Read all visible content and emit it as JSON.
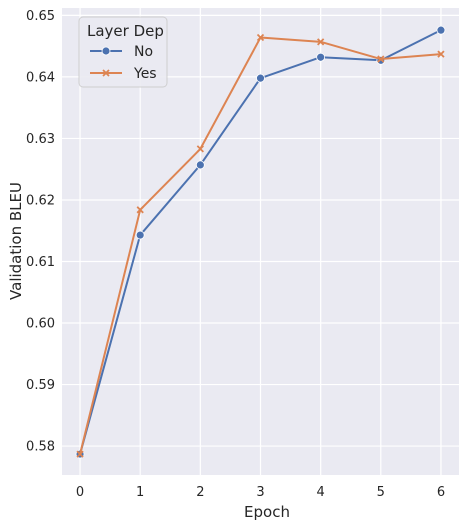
{
  "chart_data": {
    "type": "line",
    "xlabel": "Epoch",
    "ylabel": "Validation BLEU",
    "x": [
      0,
      1,
      2,
      3,
      4,
      5,
      6
    ],
    "xlim": [
      -0.3,
      6.3
    ],
    "ylim": [
      0.5753,
      0.6512
    ],
    "xticks": [
      0,
      1,
      2,
      3,
      4,
      5,
      6
    ],
    "yticks": [
      0.58,
      0.59,
      0.6,
      0.61,
      0.62,
      0.63,
      0.64,
      0.65
    ],
    "ytick_labels": [
      "0.58",
      "0.59",
      "0.60",
      "0.61",
      "0.62",
      "0.63",
      "0.64",
      "0.65"
    ],
    "grid": true,
    "legend": {
      "title": "Layer Dep",
      "placement": "top-left"
    },
    "series": [
      {
        "name": "No",
        "marker": "circle",
        "color": "#4c72b0",
        "values": [
          0.5787,
          0.6143,
          0.6257,
          0.6398,
          0.6432,
          0.6427,
          0.6476
        ]
      },
      {
        "name": "Yes",
        "marker": "x",
        "color": "#dd8452",
        "values": [
          0.5787,
          0.6184,
          0.6283,
          0.6464,
          0.6457,
          0.6429,
          0.6437
        ]
      }
    ]
  }
}
